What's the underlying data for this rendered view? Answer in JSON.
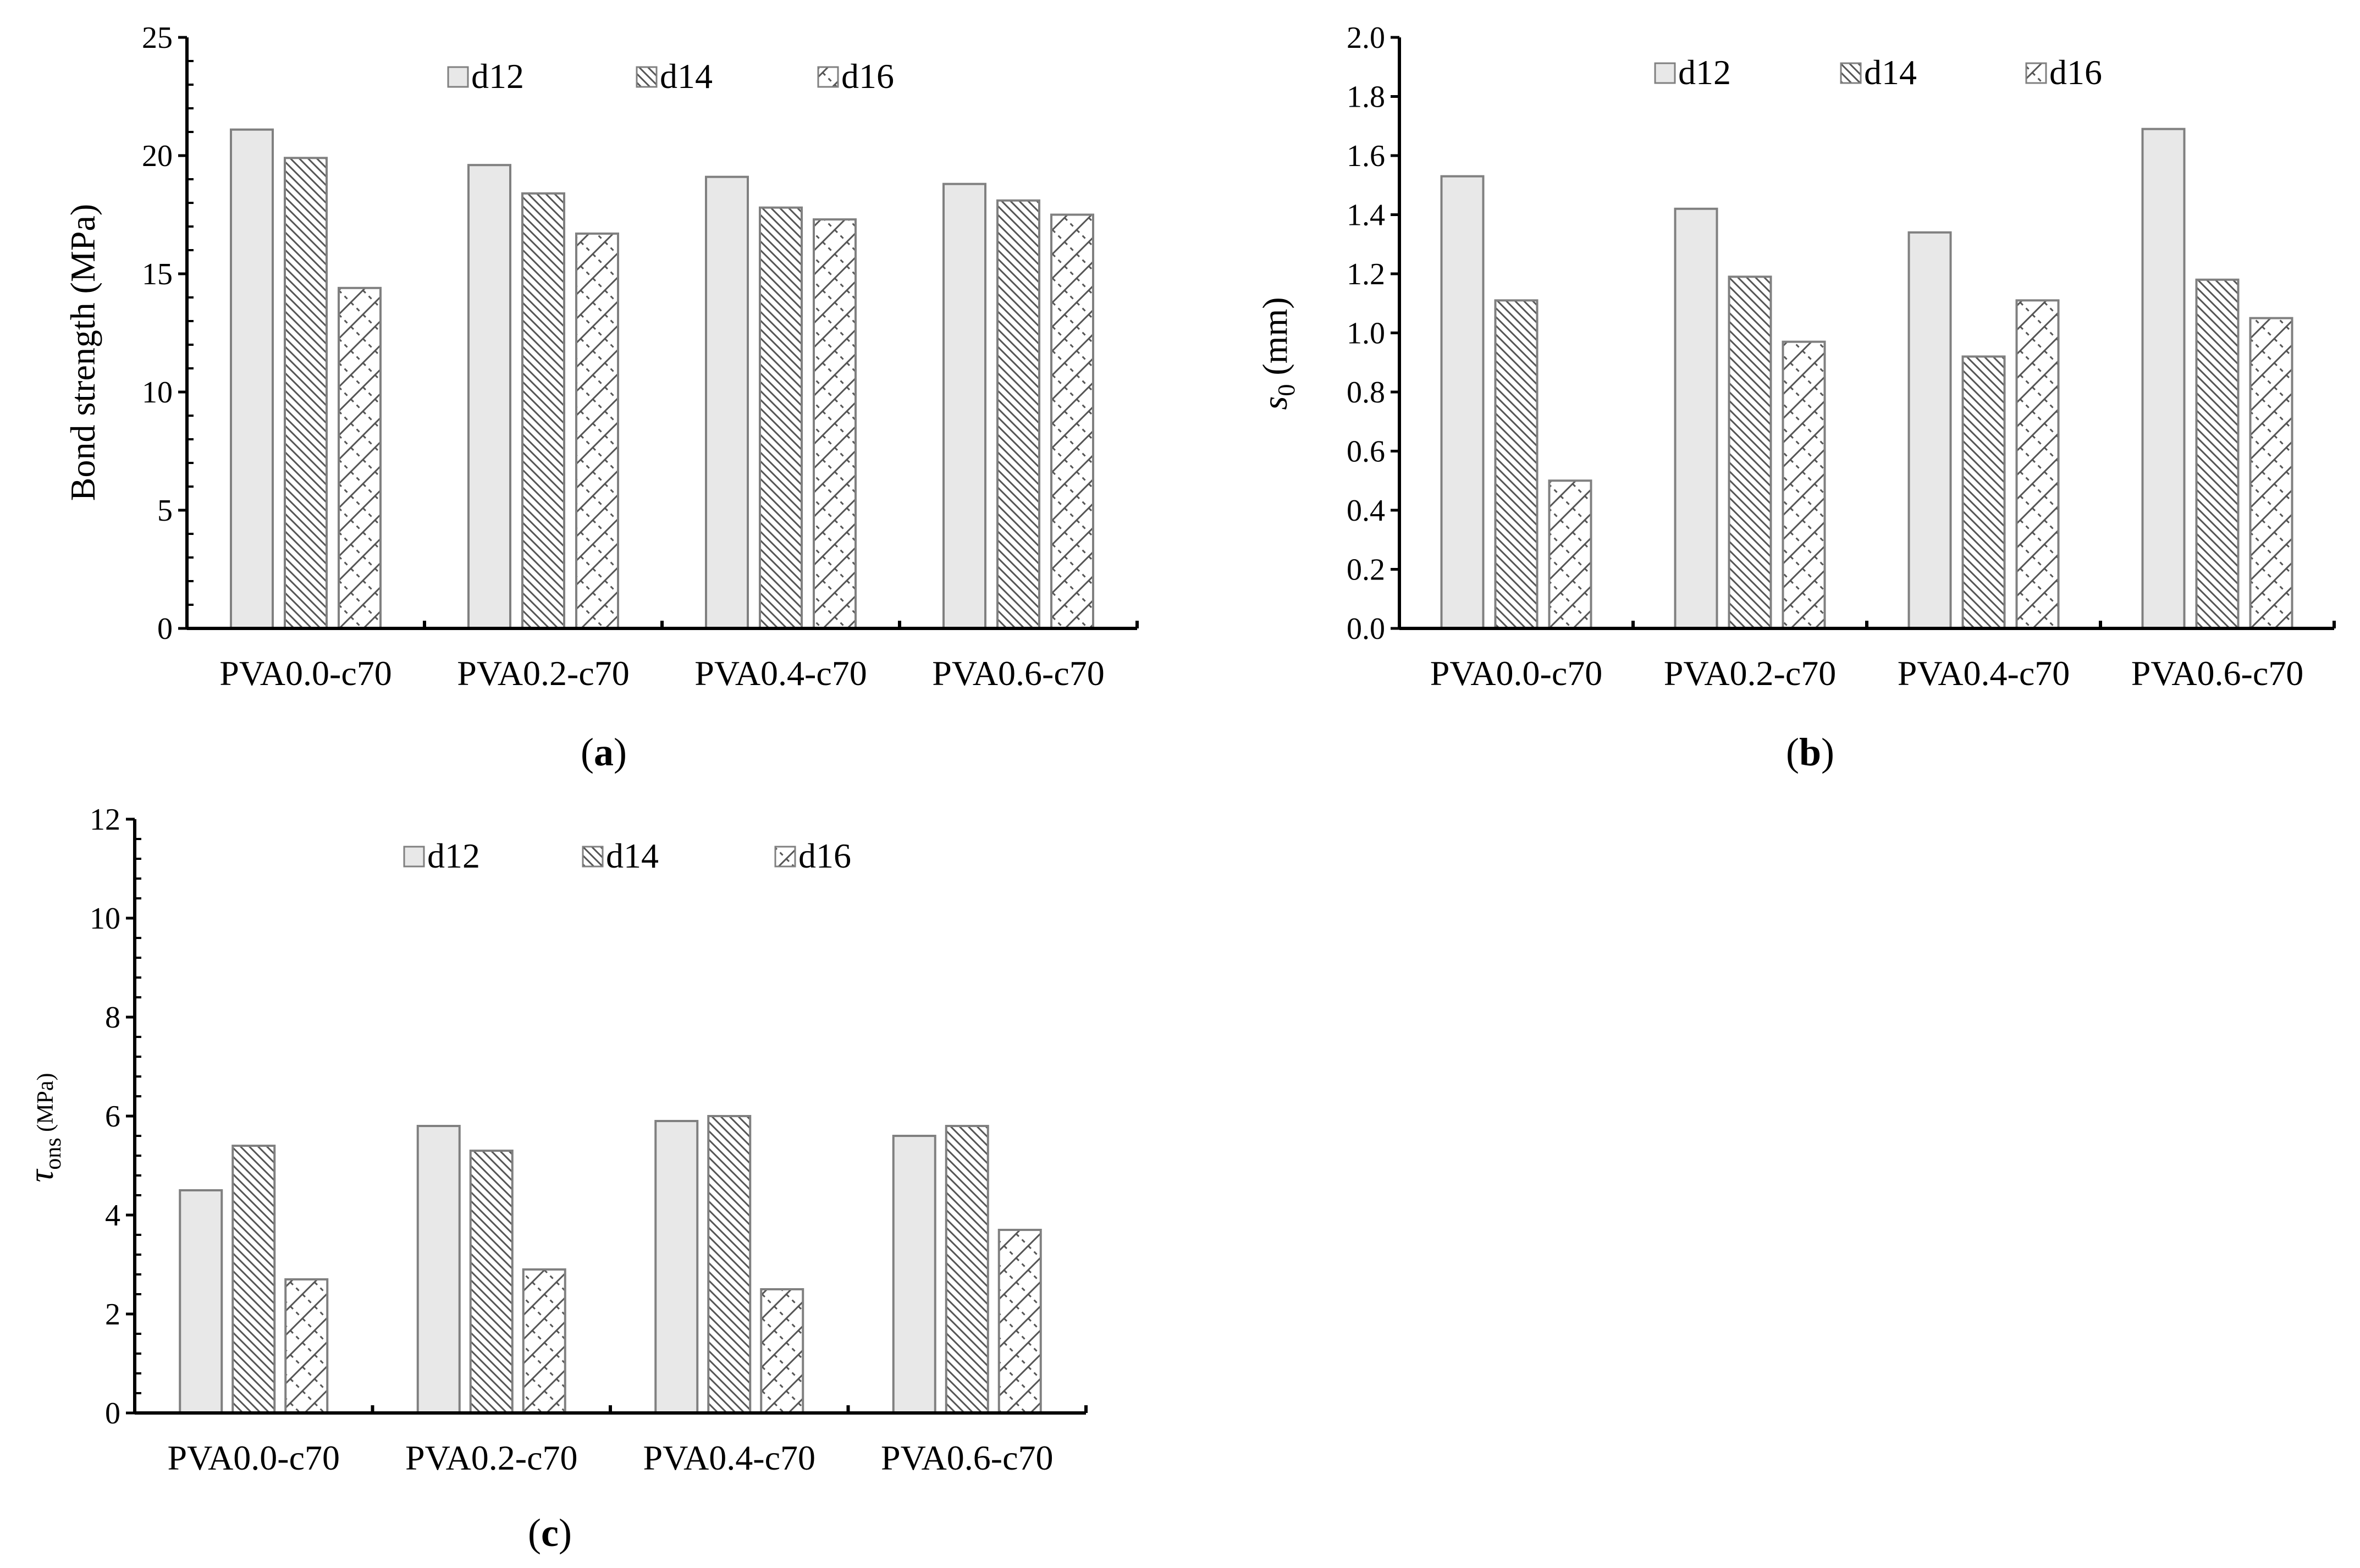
{
  "colors": {
    "d12_fill": "#e8e8e8",
    "bar_stroke": "#808080",
    "hatch": "#555555",
    "axis": "#000000"
  },
  "chart_data": [
    {
      "id": "a",
      "type": "bar",
      "panel_label": "a",
      "title": "",
      "ylabel": "Bond strength (MPa)",
      "ylim": [
        0,
        25
      ],
      "yticks": [
        "0",
        "5",
        "10",
        "15",
        "20",
        "25"
      ],
      "categories": [
        "PVA0.0-c70",
        "PVA0.2-c70",
        "PVA0.4-c70",
        "PVA0.6-c70"
      ],
      "series": [
        {
          "name": "d12",
          "values": [
            21.1,
            19.6,
            19.1,
            18.8
          ]
        },
        {
          "name": "d14",
          "values": [
            19.9,
            18.4,
            17.8,
            18.1
          ]
        },
        {
          "name": "d16",
          "values": [
            14.4,
            16.7,
            17.3,
            17.5
          ]
        }
      ],
      "legend": "top"
    },
    {
      "id": "b",
      "type": "bar",
      "panel_label": "b",
      "title": "",
      "ylabel_main": "s",
      "ylabel_sub": "0",
      "ylabel_unit": " (mm)",
      "ylim": [
        0,
        2.0
      ],
      "yticks": [
        "0.0",
        "0.2",
        "0.4",
        "0.6",
        "0.8",
        "1.0",
        "1.2",
        "1.4",
        "1.6",
        "1.8",
        "2.0"
      ],
      "categories": [
        "PVA0.0-c70",
        "PVA0.2-c70",
        "PVA0.4-c70",
        "PVA0.6-c70"
      ],
      "series": [
        {
          "name": "d12",
          "values": [
            1.53,
            1.42,
            1.34,
            1.69
          ]
        },
        {
          "name": "d14",
          "values": [
            1.11,
            1.19,
            0.92,
            1.18
          ]
        },
        {
          "name": "d16",
          "values": [
            0.5,
            0.97,
            1.11,
            1.05
          ]
        }
      ],
      "legend": "top"
    },
    {
      "id": "c",
      "type": "bar",
      "panel_label": "c",
      "title": "",
      "ylabel_main": "τ",
      "ylabel_sub": "ons",
      "ylabel_unit": " (MPa)",
      "ylim": [
        0,
        12
      ],
      "yticks": [
        "0",
        "2",
        "4",
        "6",
        "8",
        "10",
        "12"
      ],
      "categories": [
        "PVA0.0-c70",
        "PVA0.2-c70",
        "PVA0.4-c70",
        "PVA0.6-c70"
      ],
      "series": [
        {
          "name": "d12",
          "values": [
            4.5,
            5.8,
            5.9,
            5.6
          ]
        },
        {
          "name": "d14",
          "values": [
            5.4,
            5.3,
            6.0,
            5.8
          ]
        },
        {
          "name": "d16",
          "values": [
            2.7,
            2.9,
            2.5,
            3.7
          ]
        }
      ],
      "legend": "top"
    }
  ]
}
